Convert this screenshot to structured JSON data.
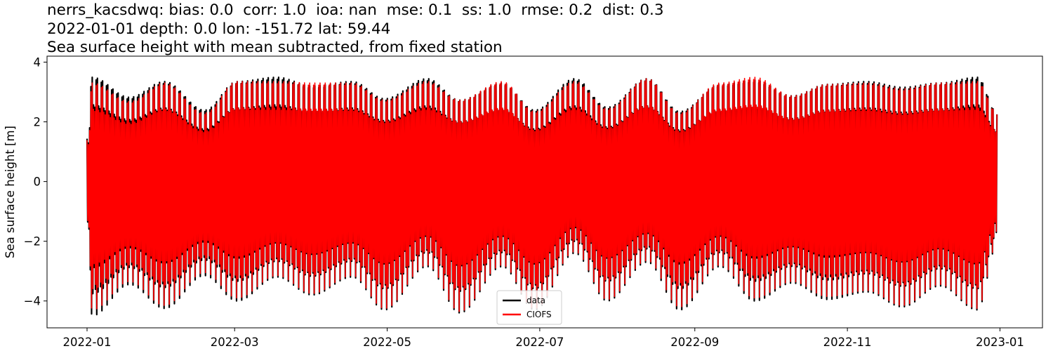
{
  "chart_data": {
    "type": "line",
    "title_lines": [
      "nerrs_kacsdwq: bias: 0.0  corr: 1.0  ioa: nan  mse: 0.1  ss: 1.0  rmse: 0.2  dist: 0.3",
      "2022-01-01 depth: 0.0 lon: -151.72 lat: 59.44",
      "Sea surface height with mean subtracted, from fixed station"
    ],
    "xlabel": "",
    "ylabel": "Sea surface height [m]",
    "x_range": [
      "2021-12-16",
      "2023-01-18"
    ],
    "ylim": [
      -4.9,
      4.2
    ],
    "x_ticks": [
      "2022-01",
      "2022-03",
      "2022-05",
      "2022-07",
      "2022-09",
      "2022-11",
      "2023-01"
    ],
    "y_ticks": [
      -4,
      -2,
      0,
      2,
      4
    ],
    "grid": false,
    "legend_placement": "lower center",
    "series": [
      {
        "name": "data",
        "color": "#000000",
        "x_start": "2022-01-01",
        "x_end": "2022-12-31",
        "envelope_dates": [
          "2022-01-01",
          "2022-01-03",
          "2022-01-18",
          "2022-02-01",
          "2022-02-17",
          "2022-03-02",
          "2022-03-18",
          "2022-04-01",
          "2022-04-17",
          "2022-04-30",
          "2022-05-17",
          "2022-05-30",
          "2022-06-16",
          "2022-06-29",
          "2022-07-15",
          "2022-07-28",
          "2022-08-13",
          "2022-08-26",
          "2022-09-11",
          "2022-09-25",
          "2022-10-10",
          "2022-10-24",
          "2022-11-09",
          "2022-11-23",
          "2022-12-08",
          "2022-12-23",
          "2022-12-31"
        ],
        "envelope_upper": [
          1.5,
          3.65,
          2.95,
          3.5,
          2.5,
          3.5,
          3.65,
          3.35,
          3.5,
          2.9,
          3.6,
          2.85,
          3.45,
          2.5,
          3.6,
          2.6,
          3.6,
          2.45,
          3.4,
          3.55,
          3.0,
          3.4,
          3.5,
          3.3,
          3.45,
          3.65,
          2.4
        ],
        "envelope_lower": [
          -1.5,
          -4.5,
          -3.45,
          -4.25,
          -3.15,
          -4.0,
          -3.2,
          -3.8,
          -3.2,
          -4.3,
          -2.85,
          -4.4,
          -2.85,
          -4.3,
          -2.4,
          -4.0,
          -2.7,
          -4.3,
          -2.85,
          -4.0,
          -3.4,
          -3.95,
          -3.7,
          -4.2,
          -3.5,
          -4.3,
          -2.1
        ]
      },
      {
        "name": "CIOFS",
        "color": "#ff0000",
        "x_start": "2022-01-01",
        "x_end": "2022-12-31",
        "envelope_dates": [
          "2022-01-01",
          "2022-01-03",
          "2022-01-18",
          "2022-02-01",
          "2022-02-17",
          "2022-03-02",
          "2022-03-18",
          "2022-04-01",
          "2022-04-17",
          "2022-04-30",
          "2022-05-17",
          "2022-05-30",
          "2022-06-16",
          "2022-06-29",
          "2022-07-15",
          "2022-07-28",
          "2022-08-13",
          "2022-08-26",
          "2022-09-11",
          "2022-09-25",
          "2022-10-10",
          "2022-10-24",
          "2022-11-09",
          "2022-11-23",
          "2022-12-08",
          "2022-12-23",
          "2022-12-31"
        ],
        "envelope_upper": [
          1.45,
          3.45,
          2.8,
          3.45,
          2.4,
          3.5,
          3.5,
          3.45,
          3.45,
          2.85,
          3.5,
          2.85,
          3.5,
          2.45,
          3.5,
          2.55,
          3.6,
          2.4,
          3.45,
          3.65,
          3.0,
          3.4,
          3.45,
          3.25,
          3.45,
          3.5,
          2.4
        ],
        "envelope_lower": [
          -1.45,
          -4.3,
          -3.35,
          -4.15,
          -3.05,
          -3.9,
          -3.15,
          -3.75,
          -3.15,
          -4.25,
          -2.8,
          -4.35,
          -2.8,
          -4.25,
          -2.35,
          -3.95,
          -2.65,
          -4.2,
          -2.8,
          -3.9,
          -3.35,
          -3.85,
          -3.65,
          -4.15,
          -3.45,
          -4.25,
          -2.05
        ]
      }
    ],
    "legend": {
      "entries": [
        "data",
        "CIOFS"
      ]
    }
  }
}
